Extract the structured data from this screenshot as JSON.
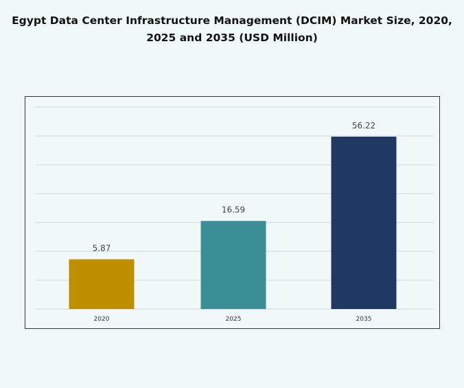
{
  "chart_data": {
    "type": "bar",
    "title": "Egypt Data Center Infrastructure  Management (DCIM) Market Size, 2020, 2025 and 2035 (USD Million)",
    "title_lines": [
      "Egypt Data Center Infrastructure  Management (DCIM) Market Size, 2020,",
      "2025 and 2035 (USD Million)"
    ],
    "categories": [
      "2020",
      "2025",
      "2035"
    ],
    "values": [
      5.87,
      16.59,
      56.22
    ],
    "value_labels": [
      "5.87",
      "16.59",
      "56.22"
    ],
    "colors": [
      "#c08f00",
      "#3c8e96",
      "#1f3864"
    ],
    "xlabel": "",
    "ylabel": "",
    "grid": true,
    "legend": "none"
  }
}
